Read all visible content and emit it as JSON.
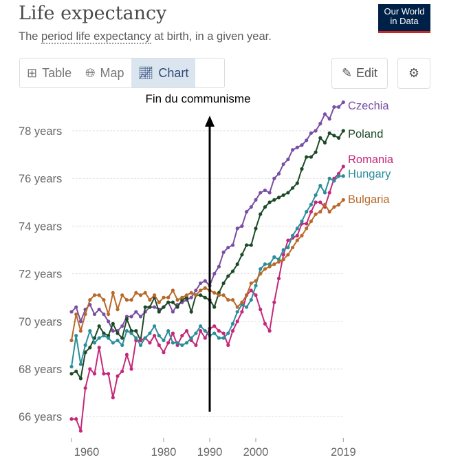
{
  "header": {
    "title": "Life expectancy",
    "subtitle_pre": "The ",
    "subtitle_link": "period life expectancy",
    "subtitle_post": " at birth, in a given year.",
    "logo_line1": "Our World",
    "logo_line2": "in Data"
  },
  "tabs": [
    {
      "label": "Table",
      "icon": "table-icon"
    },
    {
      "label": "Map",
      "icon": "globe-icon"
    },
    {
      "label": "Chart",
      "icon": "line-chart-icon",
      "active": true
    }
  ],
  "toolbar": {
    "edit_label": "Edit",
    "settings_icon": "gear-icon"
  },
  "chart_data": {
    "type": "line",
    "title": "Life expectancy",
    "xlabel": "",
    "ylabel": "",
    "x_ticks": [
      1960,
      1980,
      1990,
      2000,
      2019
    ],
    "y_ticks": [
      {
        "v": 66,
        "label": "66 years"
      },
      {
        "v": 68,
        "label": "68 years"
      },
      {
        "v": 70,
        "label": "70 years"
      },
      {
        "v": 72,
        "label": "72 years"
      },
      {
        "v": 74,
        "label": "74 years"
      },
      {
        "v": 76,
        "label": "76 years"
      },
      {
        "v": 78,
        "label": "78 years"
      }
    ],
    "xlim": [
      1960,
      2019
    ],
    "ylim": [
      65.5,
      79.5
    ],
    "grid": "horizontal-dashed",
    "legend": "inline-right",
    "annotation": {
      "text": "Fin du communisme",
      "year": 1990
    },
    "x_start": 1960,
    "series": [
      {
        "name": "Czechia",
        "color": "#7a4fa3",
        "values": [
          70.4,
          70.6,
          70.0,
          70.5,
          70.7,
          70.3,
          70.5,
          70.3,
          70.0,
          69.6,
          69.6,
          69.8,
          70.2,
          70.2,
          70.4,
          70.2,
          70.4,
          70.6,
          70.6,
          70.5,
          70.6,
          70.8,
          70.4,
          70.7,
          70.8,
          70.9,
          71.0,
          71.3,
          71.6,
          71.7,
          71.5,
          72.0,
          72.3,
          72.9,
          73.1,
          73.2,
          73.9,
          74.0,
          74.6,
          74.8,
          75.1,
          75.4,
          75.5,
          75.4,
          76.0,
          76.2,
          76.6,
          76.8,
          77.2,
          77.3,
          77.4,
          77.6,
          77.9,
          78.0,
          78.3,
          78.7,
          78.5,
          79.0,
          79.0,
          79.2
        ]
      },
      {
        "name": "Poland",
        "color": "#1d4a26",
        "values": [
          67.8,
          67.9,
          67.6,
          68.7,
          68.9,
          69.3,
          69.8,
          69.5,
          69.4,
          69.9,
          69.5,
          69.3,
          70.1,
          69.6,
          69.6,
          69.2,
          70.6,
          70.6,
          71.0,
          70.4,
          70.6,
          70.8,
          70.8,
          70.6,
          70.9,
          71.0,
          70.4,
          71.1,
          71.1,
          71.0,
          70.9,
          70.6,
          71.2,
          71.6,
          71.9,
          72.1,
          72.4,
          72.8,
          73.2,
          73.2,
          73.9,
          74.5,
          74.8,
          75.0,
          75.1,
          75.2,
          75.3,
          75.4,
          75.6,
          75.8,
          76.4,
          76.9,
          76.9,
          77.1,
          77.7,
          77.5,
          77.9,
          77.8,
          77.7,
          78.0
        ]
      },
      {
        "name": "Romania",
        "color": "#c4287a",
        "values": [
          65.9,
          65.9,
          65.4,
          67.2,
          68.0,
          67.8,
          68.9,
          67.8,
          67.8,
          66.8,
          67.7,
          67.9,
          68.6,
          68.0,
          69.2,
          69.2,
          69.3,
          69.1,
          69.4,
          69.0,
          68.7,
          69.1,
          69.5,
          69.0,
          69.4,
          69.6,
          69.2,
          69.0,
          69.6,
          69.3,
          69.7,
          69.8,
          69.6,
          69.5,
          69.0,
          69.6,
          70.0,
          70.4,
          71.1,
          71.3,
          71.1,
          70.5,
          69.9,
          69.6,
          70.8,
          71.8,
          72.8,
          73.4,
          73.5,
          73.6,
          74.1,
          74.1,
          74.6,
          75.0,
          75.0,
          74.8,
          75.4,
          76.0,
          76.2,
          76.5
        ]
      },
      {
        "name": "Hungary",
        "color": "#2a8e9a",
        "values": [
          68.1,
          69.4,
          68.2,
          69.0,
          69.6,
          69.1,
          69.3,
          69.4,
          69.3,
          69.1,
          69.2,
          69.0,
          69.6,
          69.5,
          69.3,
          69.0,
          69.3,
          69.5,
          69.8,
          69.4,
          69.2,
          69.6,
          69.1,
          69.1,
          69.0,
          69.1,
          69.3,
          69.5,
          69.8,
          69.6,
          69.4,
          69.5,
          69.3,
          69.3,
          69.5,
          69.9,
          70.4,
          70.7,
          70.6,
          70.9,
          71.5,
          72.2,
          72.4,
          72.4,
          72.7,
          72.6,
          73.0,
          73.1,
          73.6,
          73.9,
          74.2,
          74.6,
          74.9,
          75.3,
          75.7,
          75.4,
          76.0,
          75.9,
          76.1,
          76.1
        ]
      },
      {
        "name": "Bulgaria",
        "color": "#b8692a",
        "values": [
          69.2,
          70.3,
          69.6,
          70.3,
          70.9,
          71.1,
          71.1,
          70.9,
          70.3,
          71.2,
          70.5,
          71.1,
          70.9,
          70.9,
          71.2,
          71.1,
          71.2,
          70.9,
          71.1,
          70.8,
          71.0,
          71.0,
          71.3,
          70.9,
          71.0,
          71.1,
          71.2,
          71.1,
          71.3,
          71.4,
          71.3,
          71.2,
          71.1,
          71.1,
          70.9,
          70.9,
          70.6,
          70.8,
          71.1,
          71.6,
          71.7,
          72.0,
          72.2,
          72.3,
          72.4,
          72.5,
          72.6,
          72.8,
          73.1,
          73.4,
          73.6,
          73.9,
          74.2,
          74.5,
          74.6,
          74.9,
          74.6,
          74.8,
          74.9,
          75.1
        ]
      }
    ]
  }
}
